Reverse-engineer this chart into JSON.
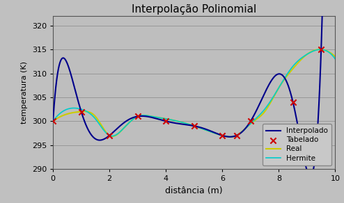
{
  "title": "Interpolação Polinomial",
  "xlabel": "distância (m)",
  "ylabel": "temperatura (K)",
  "xlim": [
    0.0,
    10.0
  ],
  "ylim": [
    290,
    322
  ],
  "yticks": [
    290,
    295,
    300,
    305,
    310,
    315,
    320
  ],
  "xticks": [
    0.0,
    2.0,
    4.0,
    6.0,
    8.0,
    10.0
  ],
  "fig_bg_color": "#c0c0c0",
  "plot_bg_color": "#bebebe",
  "interpolado_color": "#00008B",
  "real_color": "#CCCC00",
  "hermite_color": "#00CCCC",
  "tabelado_color": "#CC0000",
  "tabelado_x": [
    0.0,
    1.0,
    2.0,
    3.0,
    4.0,
    5.0,
    6.0,
    6.5,
    7.0,
    8.5,
    9.5
  ],
  "tabelado_y": [
    300,
    302,
    297,
    301,
    300,
    299,
    297,
    297,
    300,
    304,
    315
  ],
  "real_x": [
    0.0,
    0.5,
    1.0,
    1.5,
    2.0,
    2.5,
    3.0,
    3.5,
    4.0,
    4.5,
    5.0,
    5.5,
    6.0,
    6.5,
    7.0,
    7.5,
    8.0,
    8.5,
    9.0,
    9.5,
    10.0
  ],
  "real_y": [
    300,
    301,
    302,
    301,
    297,
    299,
    301,
    301,
    300,
    300,
    299,
    298,
    297,
    297,
    300,
    303,
    308,
    312,
    315,
    315,
    313
  ],
  "hermite_x": [
    0.0,
    0.5,
    1.0,
    1.5,
    2.0,
    2.5,
    3.0,
    3.5,
    4.0,
    4.5,
    5.0,
    5.5,
    6.0,
    6.5,
    7.0,
    7.5,
    8.0,
    8.5,
    9.0,
    9.5,
    10.0
  ],
  "hermite_y": [
    300,
    303,
    302,
    300,
    297,
    299,
    301,
    301,
    300,
    300,
    299,
    298,
    297,
    297,
    300,
    303,
    308,
    312,
    315,
    315,
    313
  ],
  "legend_order": [
    "Interpolado",
    "Tabelado",
    "Real",
    "Hermite"
  ]
}
